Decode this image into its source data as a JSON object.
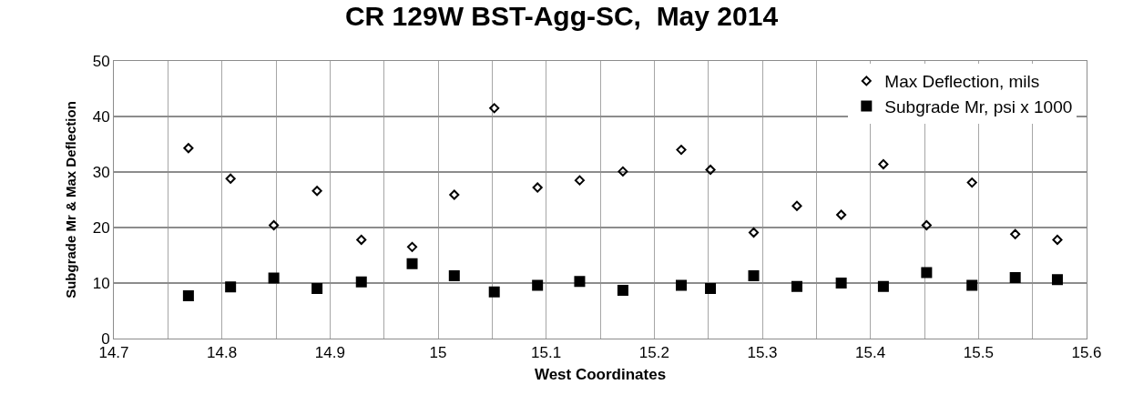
{
  "chart_data": {
    "type": "scatter",
    "title": "CR 129W BST-Agg-SC,  May 2014",
    "xlabel": "West Coordinates",
    "ylabel": "Subgrade Mr & Max Deflection",
    "x": [
      14.769,
      14.808,
      14.848,
      14.888,
      14.929,
      14.976,
      15.015,
      15.052,
      15.092,
      15.131,
      15.171,
      15.225,
      15.252,
      15.292,
      15.332,
      15.373,
      15.412,
      15.452,
      15.494,
      15.534,
      15.573
    ],
    "series": [
      {
        "name": "Max Deflection, mils",
        "color": "#000000",
        "marker": "diamond",
        "values": [
          34.3,
          28.8,
          20.4,
          26.6,
          17.8,
          16.5,
          25.9,
          41.5,
          27.2,
          28.5,
          30.1,
          34.0,
          30.4,
          19.1,
          23.9,
          22.3,
          31.4,
          20.4,
          28.1,
          18.8,
          17.8
        ]
      },
      {
        "name": "Subgrade Mr, psi x 1000",
        "color": "#000000",
        "marker": "square",
        "values": [
          7.7,
          9.3,
          10.9,
          9.0,
          10.2,
          13.5,
          11.3,
          8.4,
          9.6,
          10.3,
          8.7,
          9.6,
          9.0,
          11.3,
          9.4,
          10.0,
          9.4,
          11.9,
          9.6,
          11.0,
          10.6
        ]
      }
    ],
    "xlim": [
      14.7,
      15.6
    ],
    "xticks": [
      14.7,
      {
        "value": 14.75,
        "label": null
      },
      14.8,
      {
        "value": 14.85,
        "label": null
      },
      14.9,
      {
        "value": 14.95,
        "label": null
      },
      15,
      {
        "value": 15.05,
        "label": null
      },
      15.1,
      {
        "value": 15.15,
        "label": null
      },
      15.2,
      {
        "value": 15.25,
        "label": null
      },
      15.3,
      {
        "value": 15.35,
        "label": null
      },
      15.4,
      {
        "value": 15.45,
        "label": null
      },
      15.5,
      {
        "value": 15.55,
        "label": null
      },
      15.6
    ],
    "ylim": [
      0,
      50
    ],
    "yticks": [
      0,
      10,
      20,
      30,
      40,
      50
    ],
    "grid": true,
    "legend": "top right"
  }
}
